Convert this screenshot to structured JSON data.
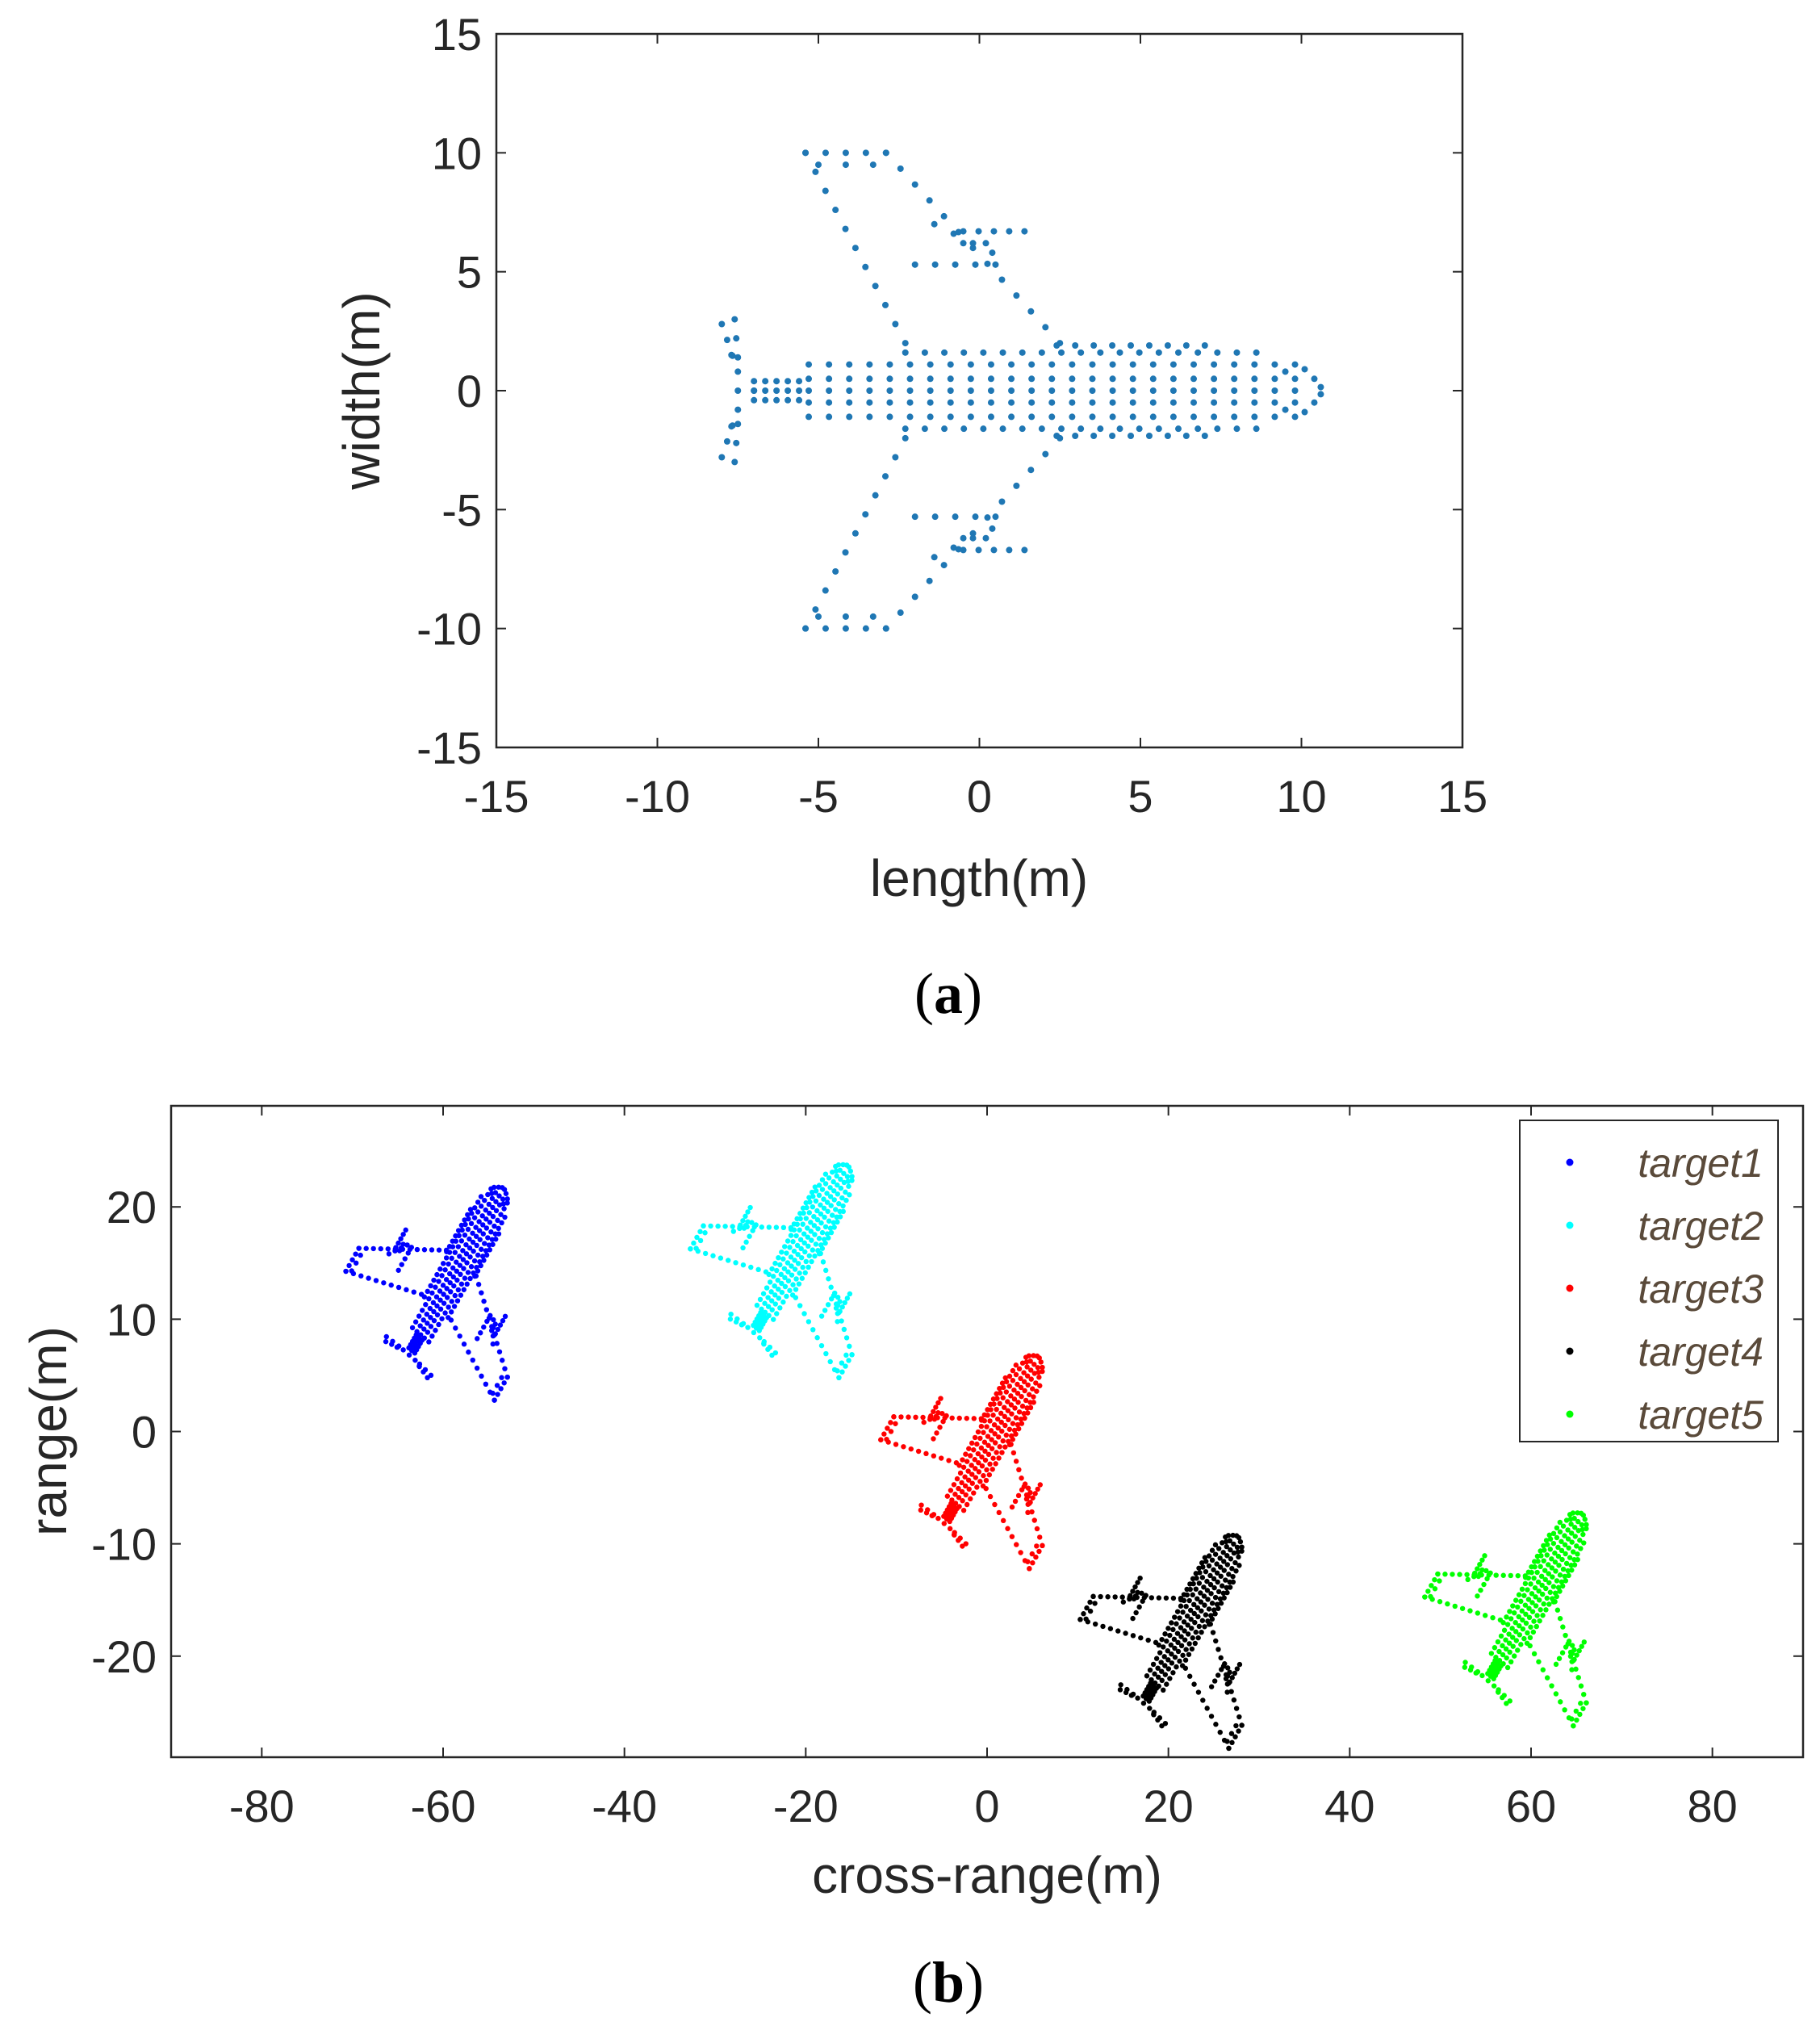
{
  "captions": {
    "a_open": "(",
    "a_letter": "a",
    "a_close": ")",
    "b_open": "(",
    "b_letter": "b",
    "b_close": ")"
  },
  "chart_data": [
    {
      "type": "scatter",
      "title": "",
      "xlabel": "length(m)",
      "ylabel": "width(m)",
      "xlim": [
        -15,
        15
      ],
      "ylim": [
        -15,
        15
      ],
      "xticks": [
        "-15",
        "-10",
        "-5",
        "0",
        "5",
        "10",
        "15"
      ],
      "yticks": [
        "15",
        "10",
        "5",
        "0",
        "-5",
        "-10",
        "-15"
      ],
      "marker_color": "#1f77b4",
      "description": "point-scatter model of an aircraft: fuselage from x=-5.5 to x=10.8, wings to y=±10, tail fins near x=-8"
    },
    {
      "type": "scatter",
      "title": "",
      "xlabel": "cross-range(m)",
      "ylabel": "range(m)",
      "xlim": [
        -90,
        90
      ],
      "ylim": [
        -29,
        29
      ],
      "xticks": [
        "-80",
        "-60",
        "-40",
        "-20",
        "0",
        "20",
        "40",
        "60",
        "80"
      ],
      "yticks": [
        "20",
        "10",
        "0",
        "-10",
        "-20"
      ],
      "legend": "top-right",
      "series": [
        {
          "name": "target1",
          "color": "#0000ff",
          "center": [
            -58,
            15
          ]
        },
        {
          "name": "target2",
          "color": "#00ffff",
          "center": [
            -20,
            17
          ]
        },
        {
          "name": "target3",
          "color": "#ff0000",
          "center": [
            1,
            0
          ]
        },
        {
          "name": "target4",
          "color": "#000000",
          "center": [
            23,
            -16
          ]
        },
        {
          "name": "target5",
          "color": "#00ff00",
          "center": [
            61,
            -14
          ]
        }
      ]
    }
  ]
}
